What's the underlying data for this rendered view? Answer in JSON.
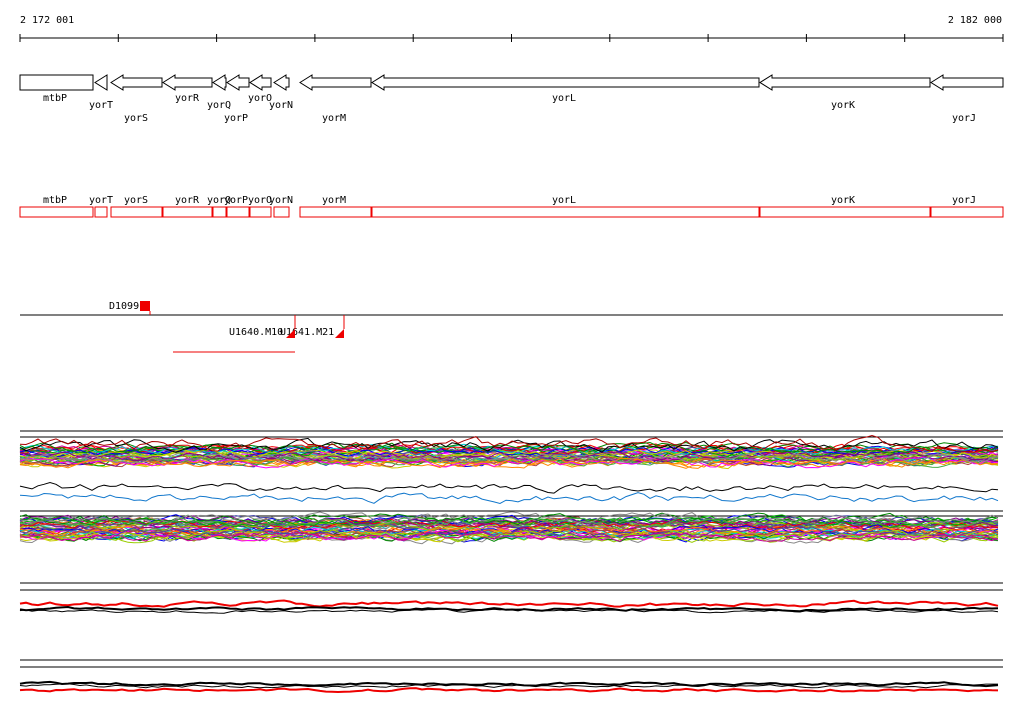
{
  "ruler": {
    "start": "2 172 001",
    "end": "2 182 000"
  },
  "genes": [
    "mtbP",
    "yorT",
    "yorS",
    "yorR",
    "yorQ",
    "yorP",
    "yorO",
    "yorN",
    "yorM",
    "yorL",
    "yorK",
    "yorJ"
  ],
  "features": [
    "D1099",
    "U1640.M10",
    "U1641.M21"
  ]
}
